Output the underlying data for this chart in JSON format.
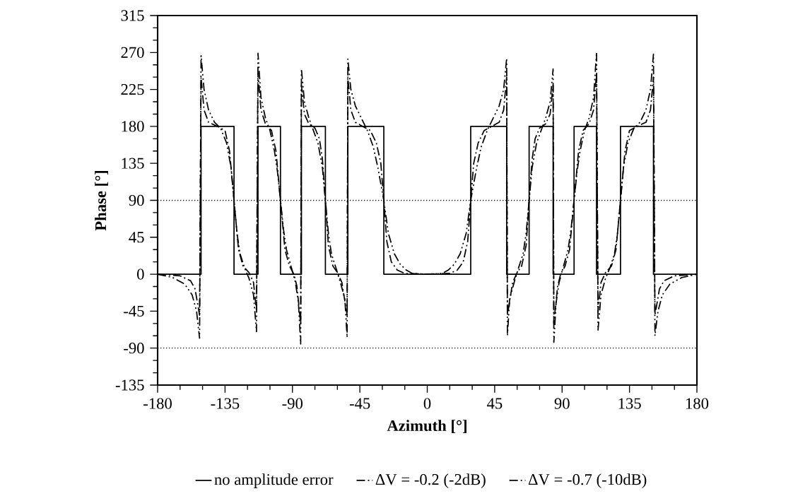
{
  "chart_data": {
    "type": "line",
    "xlabel": "Azimuth [°]",
    "ylabel": "Phase [°]",
    "xlim": [
      -180,
      180
    ],
    "ylim": [
      -135,
      315
    ],
    "xticks": [
      -180,
      -135,
      -90,
      -45,
      0,
      45,
      90,
      135,
      180
    ],
    "yticks": [
      -135,
      -90,
      -45,
      0,
      45,
      90,
      135,
      180,
      225,
      270,
      315
    ],
    "grid": false,
    "legend": "bottom",
    "marker": "none",
    "ref_lines": [
      {
        "axis": "y",
        "value": 90,
        "line_style": "dotted",
        "color": "#000000"
      },
      {
        "axis": "y",
        "value": -90,
        "line_style": "dotted",
        "color": "#000000"
      }
    ],
    "series": [
      {
        "name": "no amplitude error",
        "color": "#000000",
        "line_style": "solid",
        "x": [
          -180,
          -151,
          -151,
          -129,
          -129,
          -113,
          -113,
          -98,
          -98,
          -84,
          -84,
          -68,
          -68,
          -53,
          -53,
          -29,
          -29,
          29,
          29,
          53,
          53,
          68,
          68,
          84,
          84,
          98,
          98,
          113,
          113,
          129,
          129,
          151,
          151,
          180
        ],
        "values": [
          0,
          0,
          180,
          180,
          0,
          0,
          180,
          180,
          0,
          0,
          180,
          180,
          0,
          0,
          180,
          180,
          0,
          0,
          180,
          180,
          0,
          0,
          180,
          180,
          0,
          0,
          180,
          180,
          0,
          0,
          180,
          180,
          0,
          0
        ]
      },
      {
        "name": "ΔV = -0.2 (-2dB)",
        "color": "#000000",
        "line_style": "dashdot",
        "x": [
          -180,
          -165,
          -158,
          -155,
          -152,
          -151,
          -149,
          -146,
          -140,
          -135,
          -132,
          -129,
          -126,
          -123,
          -119,
          -116,
          -114,
          -113,
          -111,
          -108,
          -104,
          -101,
          -98,
          -95,
          -92,
          -89,
          -87,
          -84.5,
          -84,
          -82,
          -79,
          -75,
          -72,
          -70,
          -68,
          -66,
          -63,
          -60,
          -57,
          -53.5,
          -53,
          -51,
          -48,
          -43,
          -38,
          -34,
          -31,
          -29,
          -27,
          -24,
          -20,
          -15,
          0,
          15,
          20,
          24,
          27,
          29,
          31,
          34,
          38,
          43,
          48,
          51,
          53,
          53.5,
          57,
          60,
          63,
          66,
          68,
          70,
          72,
          75,
          79,
          82,
          84,
          84.5,
          87,
          89,
          92,
          95,
          98,
          101,
          104,
          108,
          111,
          113,
          114,
          116,
          119,
          123,
          126,
          129,
          132,
          135,
          140,
          146,
          149,
          151,
          152,
          155,
          158,
          165,
          180
        ],
        "values": [
          0,
          -2,
          -8,
          -18,
          -50,
          240,
          200,
          185,
          180,
          175,
          150,
          90,
          30,
          10,
          2,
          -10,
          -45,
          245,
          200,
          183,
          175,
          150,
          90,
          30,
          10,
          0,
          -15,
          -60,
          230,
          195,
          183,
          178,
          165,
          140,
          90,
          35,
          10,
          2,
          -10,
          -50,
          240,
          200,
          185,
          180,
          175,
          160,
          135,
          90,
          40,
          15,
          5,
          1,
          0,
          1,
          5,
          15,
          40,
          90,
          135,
          160,
          175,
          180,
          185,
          200,
          240,
          -50,
          -10,
          2,
          10,
          35,
          90,
          140,
          165,
          178,
          183,
          195,
          230,
          -60,
          -15,
          0,
          10,
          30,
          90,
          150,
          175,
          183,
          200,
          245,
          -45,
          -10,
          2,
          10,
          30,
          90,
          150,
          175,
          180,
          185,
          200,
          240,
          -50,
          -18,
          -8,
          -2,
          0
        ]
      },
      {
        "name": "ΔV = -0.7 (-10dB)",
        "color": "#000000",
        "line_style": "dashdotdot",
        "x": [
          -180,
          -170,
          -162,
          -157,
          -154,
          -152,
          -151,
          -149,
          -146,
          -142,
          -138,
          -134,
          -131,
          -129,
          -127,
          -125,
          -122,
          -119,
          -116,
          -114,
          -113,
          -111,
          -108,
          -105,
          -102,
          -100,
          -98,
          -96,
          -94,
          -91,
          -88,
          -86,
          -84.5,
          -84,
          -82,
          -79,
          -76,
          -73,
          -70,
          -68,
          -66,
          -64,
          -61,
          -58,
          -55,
          -53.5,
          -53,
          -51,
          -48,
          -44,
          -40,
          -36,
          -33,
          -29,
          -26,
          -22,
          -18,
          -14,
          -10,
          0,
          10,
          14,
          18,
          22,
          26,
          29,
          33,
          36,
          40,
          44,
          48,
          51,
          53,
          53.5,
          55,
          58,
          61,
          64,
          66,
          68,
          70,
          73,
          76,
          79,
          82,
          84,
          84.5,
          86,
          88,
          91,
          94,
          96,
          98,
          100,
          102,
          105,
          108,
          111,
          113,
          114,
          116,
          119,
          122,
          125,
          127,
          129,
          131,
          134,
          138,
          142,
          146,
          149,
          151,
          152,
          154,
          157,
          162,
          170,
          180
        ],
        "values": [
          0,
          -4,
          -12,
          -25,
          -45,
          -78,
          266,
          225,
          200,
          185,
          178,
          160,
          130,
          90,
          50,
          25,
          8,
          -5,
          -25,
          -70,
          269,
          215,
          190,
          175,
          150,
          125,
          90,
          55,
          30,
          10,
          -10,
          -35,
          -85,
          250,
          210,
          190,
          175,
          160,
          130,
          90,
          50,
          25,
          8,
          -10,
          -30,
          -77,
          262,
          225,
          205,
          190,
          175,
          155,
          130,
          90,
          50,
          25,
          12,
          5,
          1,
          0,
          1,
          5,
          12,
          25,
          50,
          90,
          130,
          155,
          175,
          190,
          205,
          225,
          263,
          -75,
          -30,
          -10,
          8,
          25,
          50,
          90,
          130,
          160,
          175,
          190,
          210,
          250,
          -83,
          -35,
          -10,
          10,
          30,
          55,
          90,
          125,
          150,
          175,
          190,
          215,
          270,
          -68,
          -25,
          -5,
          8,
          25,
          50,
          90,
          130,
          160,
          178,
          185,
          200,
          225,
          268,
          -75,
          -45,
          -25,
          -12,
          -4,
          0
        ]
      }
    ]
  }
}
